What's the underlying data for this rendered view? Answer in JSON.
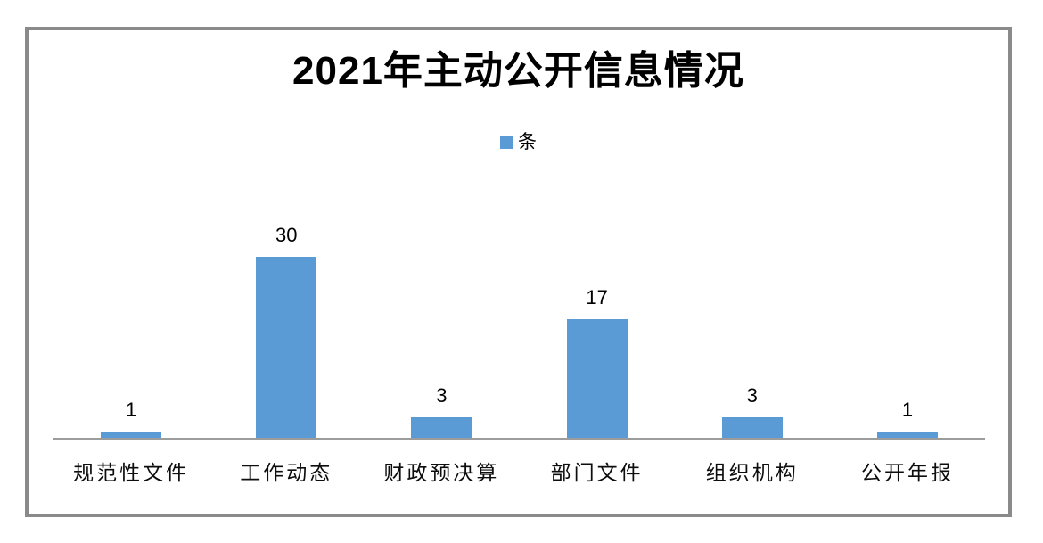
{
  "window": {
    "background_color": "#ffffff",
    "frame_border_color": "#8a8a8a"
  },
  "chart": {
    "title": "2021年主动公开信息情况",
    "legend": {
      "label": "条",
      "swatch_color": "#5B9BD5"
    }
  },
  "chart_data": {
    "type": "bar",
    "title": "2021年主动公开信息情况",
    "categories": [
      "规范性文件",
      "工作动态",
      "财政预决算",
      "部门文件",
      "组织机构",
      "公开年报"
    ],
    "series": [
      {
        "name": "条",
        "values": [
          1,
          30,
          3,
          17,
          3,
          1
        ]
      }
    ],
    "data_labels": [
      "1",
      "30",
      "3",
      "17",
      "3",
      "1"
    ],
    "bar_color": "#5B9BD5",
    "axis_line_color": "#9c9c9c",
    "xlabel": "",
    "ylabel": "",
    "ylim": [
      0,
      30
    ],
    "grid": false,
    "legend_position": "top",
    "y_axis_visible": false
  }
}
